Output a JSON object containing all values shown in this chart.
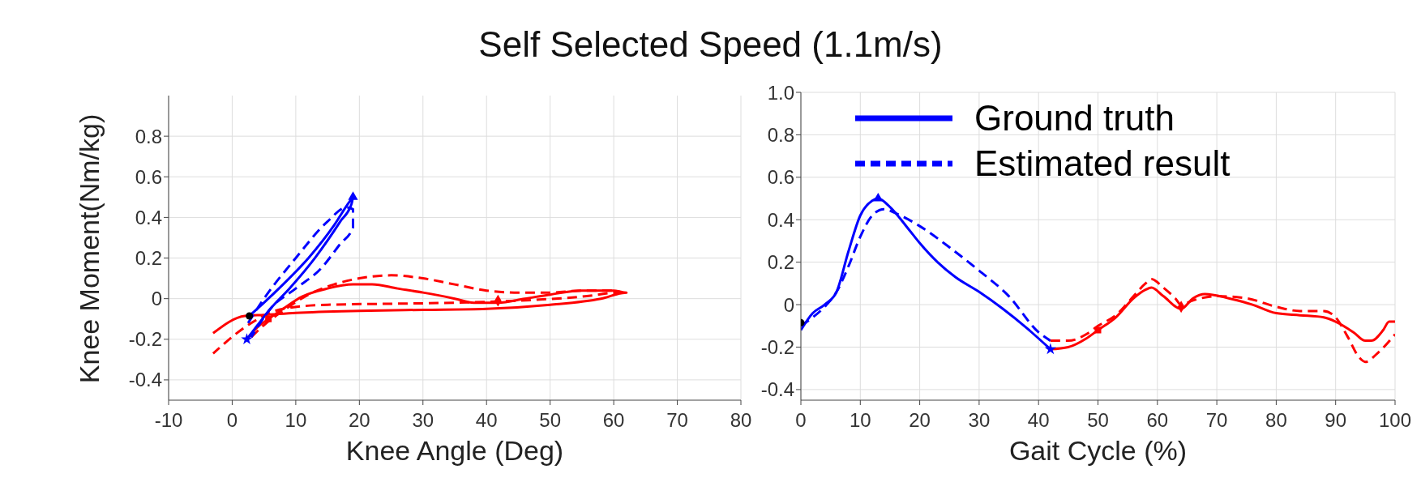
{
  "chart_data": [
    {
      "type": "line",
      "title": "Self Selected Speed (1.1m/s)",
      "xlabel": "Knee Angle (Deg)",
      "ylabel": "Knee Moment(Nm/kg)",
      "xlim": [
        -10,
        80
      ],
      "xticks": [
        -10,
        0,
        10,
        20,
        30,
        40,
        50,
        60,
        70,
        80
      ],
      "ylim": [
        -0.5,
        1.0
      ],
      "yticks": [
        -0.4,
        -0.2,
        0,
        0.2,
        0.4,
        0.6,
        0.8
      ],
      "grid": true,
      "series": [
        {
          "color": "#ff0000",
          "line_style": "solid",
          "x": [
            2.3,
            4,
            5.7,
            8,
            11,
            15,
            19,
            22,
            26,
            30,
            35,
            38,
            41.8,
            46,
            50,
            55,
            60,
            62,
            58,
            50,
            40,
            30,
            20,
            10,
            5,
            2,
            -3
          ],
          "values": [
            -0.2,
            -0.14,
            -0.1,
            -0.05,
            0.01,
            0.05,
            0.07,
            0.07,
            0.05,
            0.03,
            0,
            -0.02,
            -0.02,
            0,
            0.02,
            0.04,
            0.04,
            0.03,
            0,
            -0.03,
            -0.05,
            -0.055,
            -0.06,
            -0.07,
            -0.08,
            -0.085,
            -0.17
          ]
        },
        {
          "color": "#ff0000",
          "line_style": "dashed",
          "x": [
            3,
            5,
            8,
            12,
            16,
            20,
            25,
            30,
            35,
            40,
            45,
            50,
            55,
            60,
            61,
            55,
            45,
            35,
            25,
            15,
            8,
            3,
            -3
          ],
          "values": [
            -0.19,
            -0.13,
            -0.06,
            0.02,
            0.07,
            0.1,
            0.115,
            0.1,
            0.07,
            0.04,
            0.03,
            0.03,
            0.04,
            0.04,
            0.03,
            0.01,
            -0.01,
            -0.02,
            -0.025,
            -0.03,
            -0.05,
            -0.12,
            -0.27
          ]
        },
        {
          "color": "#0000ff",
          "line_style": "solid",
          "x": [
            2.7,
            5,
            8,
            12,
            16,
            18.5,
            19,
            18.8,
            17,
            13,
            9,
            6,
            4,
            2.3
          ],
          "values": [
            -0.085,
            -0.02,
            0.07,
            0.2,
            0.36,
            0.48,
            0.5,
            0.47,
            0.38,
            0.2,
            0.05,
            -0.05,
            -0.13,
            -0.2
          ]
        },
        {
          "color": "#0000ff",
          "line_style": "dashed",
          "x": [
            2.5,
            5,
            10,
            15,
            18,
            19,
            19,
            17,
            14,
            10,
            6,
            4,
            3
          ],
          "values": [
            -0.12,
            0,
            0.2,
            0.38,
            0.45,
            0.44,
            0.35,
            0.27,
            0.15,
            0.05,
            -0.05,
            -0.14,
            -0.19
          ]
        },
        {
          "type": "scatter",
          "color": "#000000",
          "marker": "circle",
          "x": [
            2.7
          ],
          "values": [
            -0.085
          ]
        },
        {
          "type": "scatter",
          "color": "#0000ff",
          "marker": "triangle",
          "x": [
            19
          ],
          "values": [
            0.5
          ]
        },
        {
          "type": "scatter",
          "color": "#0000ff",
          "marker": "star",
          "x": [
            2.3
          ],
          "values": [
            -0.2
          ]
        },
        {
          "type": "scatter",
          "color": "#ff0000",
          "marker": "square",
          "x": [
            5.7
          ],
          "values": [
            -0.1
          ]
        },
        {
          "type": "scatter",
          "color": "#ff0000",
          "marker": "diamond",
          "x": [
            41.8
          ],
          "values": [
            -0.01
          ]
        }
      ]
    },
    {
      "type": "line",
      "xlabel": "Gait Cycle (%)",
      "xlim": [
        0,
        100
      ],
      "xticks": [
        0,
        10,
        20,
        30,
        40,
        50,
        60,
        70,
        80,
        90,
        100
      ],
      "ylim": [
        -0.45,
        1.0
      ],
      "yticks": [
        -0.4,
        -0.2,
        0,
        0.2,
        0.4,
        0.6,
        0.8,
        {
          "value": 1,
          "label": "1.0"
        }
      ],
      "grid": true,
      "legend": "top",
      "series": [
        {
          "name": "Ground truth",
          "color": "#0000ff",
          "line_style": "solid",
          "x": [
            0,
            2,
            4,
            6,
            8,
            10,
            12,
            13,
            15,
            18,
            20,
            23,
            26,
            30,
            34,
            38,
            42
          ],
          "values": [
            -0.12,
            -0.04,
            0,
            0.06,
            0.25,
            0.42,
            0.49,
            0.5,
            0.46,
            0.36,
            0.29,
            0.2,
            0.13,
            0.06,
            -0.02,
            -0.11,
            -0.21
          ]
        },
        {
          "name": "Estimated result",
          "color": "#0000ff",
          "line_style": "dashed",
          "x": [
            0,
            2,
            4,
            6,
            8,
            10,
            12,
            14,
            16,
            20,
            25,
            30,
            35,
            40,
            42
          ],
          "values": [
            -0.1,
            -0.06,
            -0.01,
            0.06,
            0.18,
            0.32,
            0.42,
            0.45,
            0.43,
            0.37,
            0.27,
            0.16,
            0.04,
            -0.13,
            -0.17
          ]
        },
        {
          "color": "#ff0000",
          "line_style": "solid",
          "x": [
            42,
            45,
            48,
            50,
            53,
            56,
            58,
            59,
            61,
            64,
            66,
            68,
            72,
            76,
            80,
            84,
            88,
            90,
            93,
            95,
            96,
            98,
            99,
            100
          ],
          "values": [
            -0.21,
            -0.2,
            -0.16,
            -0.12,
            -0.06,
            0.03,
            0.07,
            0.08,
            0.04,
            -0.02,
            0.03,
            0.05,
            0.03,
            0,
            -0.04,
            -0.05,
            -0.06,
            -0.08,
            -0.13,
            -0.17,
            -0.17,
            -0.12,
            -0.08,
            -0.08
          ]
        },
        {
          "color": "#ff0000",
          "line_style": "dashed",
          "x": [
            42,
            45,
            48,
            50,
            53,
            56,
            58,
            59,
            61,
            63,
            64,
            66,
            70,
            75,
            80,
            84,
            88,
            90,
            92,
            94,
            95,
            97,
            100
          ],
          "values": [
            -0.17,
            -0.17,
            -0.14,
            -0.1,
            -0.05,
            0.04,
            0.1,
            0.12,
            0.08,
            0.03,
            0,
            0.02,
            0.04,
            0.03,
            -0.01,
            -0.03,
            -0.03,
            -0.06,
            -0.15,
            -0.25,
            -0.27,
            -0.23,
            -0.14
          ]
        },
        {
          "type": "scatter",
          "color": "#000000",
          "marker": "circle",
          "x": [
            0
          ],
          "values": [
            -0.085
          ]
        },
        {
          "type": "scatter",
          "color": "#0000ff",
          "marker": "triangle",
          "x": [
            13
          ],
          "values": [
            0.5
          ]
        },
        {
          "type": "scatter",
          "color": "#0000ff",
          "marker": "star",
          "x": [
            42
          ],
          "values": [
            -0.21
          ]
        },
        {
          "type": "scatter",
          "color": "#ff0000",
          "marker": "square",
          "x": [
            50
          ],
          "values": [
            -0.12
          ]
        },
        {
          "type": "scatter",
          "color": "#ff0000",
          "marker": "diamond",
          "x": [
            64
          ],
          "values": [
            -0.01
          ]
        }
      ]
    }
  ]
}
